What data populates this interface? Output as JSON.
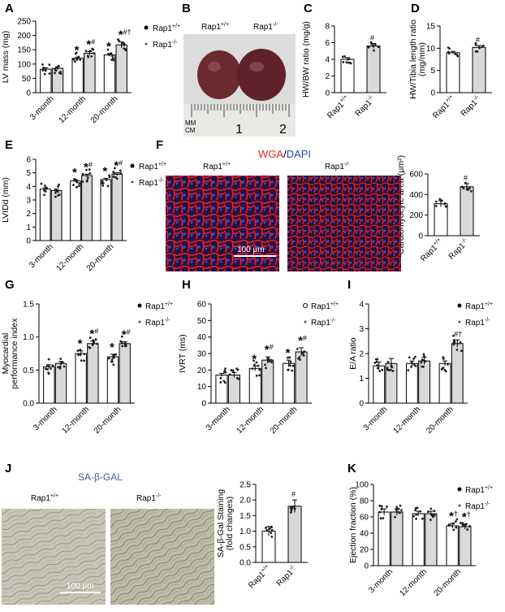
{
  "colors": {
    "wt": "#ffffff",
    "ko": "#d9d9d9",
    "wga": "#e8261c",
    "dapi": "#2e4ea8",
    "sagal": "#3a5fa6"
  },
  "legend": {
    "wt": "Rap1",
    "ko": "Rap1",
    "wt_sup": "+/+",
    "ko_sup": "-/-"
  },
  "labels": {
    "A": "A",
    "B": "B",
    "C": "C",
    "D": "D",
    "E": "E",
    "F": "F",
    "G": "G",
    "H": "H",
    "I": "I",
    "J": "J",
    "K": "K"
  },
  "panel_b": {
    "wt": "Rap1",
    "wt_sup": "+/+",
    "ko": "Rap1",
    "ko_sup": "-/-",
    "ruler_mm": "MM",
    "ruler_cm": "CM",
    "ruler_1": "1",
    "ruler_2": "2"
  },
  "panel_f": {
    "title_red": "WGA",
    "title_sep": "/",
    "title_blue": "DAPI",
    "wt": "Rap1",
    "wt_sup": "+/+",
    "ko": "Rap1",
    "ko_sup": "-/-",
    "scale": "100 μm"
  },
  "panel_j": {
    "title": "SA-β-GAL",
    "wt": "Rap1",
    "wt_sup": "+/+",
    "ko": "Rap1",
    "ko_sup": "-/-",
    "scale": "100 μm"
  },
  "chart_data": [
    {
      "id": "A",
      "type": "bar",
      "categories": [
        "3-month",
        "12-month",
        "20-month"
      ],
      "ylabel": "LV mass (mg)",
      "ylim": [
        0,
        250
      ],
      "ticks": [
        0,
        50,
        100,
        150,
        200,
        250
      ],
      "series": [
        {
          "name": "Rap1+/+",
          "values": [
            82,
            120,
            132
          ],
          "sem": [
            5,
            4,
            5
          ]
        },
        {
          "name": "Rap1-/-",
          "values": [
            85,
            138,
            167
          ],
          "sem": [
            5,
            6,
            10
          ]
        }
      ],
      "marks": [
        [
          "",
          ""
        ],
        [
          "*",
          "*#"
        ],
        [
          "*",
          "*#†"
        ]
      ]
    },
    {
      "id": "C",
      "type": "bar",
      "categories": [
        "Rap1+/+",
        "Rap1-/-"
      ],
      "ylabel": "HW/BW ratio (mg/g)",
      "ylim": [
        0,
        8
      ],
      "ticks": [
        0,
        2,
        4,
        6,
        8
      ],
      "values": [
        4.0,
        5.6
      ],
      "sem": [
        0.2,
        0.3
      ],
      "marks": [
        "",
        "#"
      ]
    },
    {
      "id": "D",
      "type": "bar",
      "categories": [
        "Rap1+/+",
        "Rap1-/-"
      ],
      "ylabel": "HW/Tibia length ratio (mg/mm)",
      "ylim": [
        0,
        15
      ],
      "ticks": [
        0,
        5,
        10,
        15
      ],
      "values": [
        9.0,
        10.2
      ],
      "sem": [
        0.3,
        0.4
      ],
      "marks": [
        "",
        "#"
      ]
    },
    {
      "id": "E",
      "type": "bar",
      "categories": [
        "3-month",
        "12-month",
        "20-month"
      ],
      "ylabel": "LVIDd (mm)",
      "ylim": [
        0,
        6
      ],
      "ticks": [
        0,
        1,
        2,
        3,
        4,
        5,
        6
      ],
      "series": [
        {
          "name": "Rap1+/+",
          "values": [
            3.8,
            4.4,
            4.5
          ],
          "sem": [
            0.1,
            0.1,
            0.1
          ]
        },
        {
          "name": "Rap1-/-",
          "values": [
            3.7,
            4.8,
            4.9
          ],
          "sem": [
            0.1,
            0.1,
            0.1
          ]
        }
      ],
      "marks": [
        [
          "",
          ""
        ],
        [
          "*",
          "*#"
        ],
        [
          "*",
          "*#"
        ]
      ]
    },
    {
      "id": "F",
      "type": "bar",
      "categories": [
        "Rap1+/+",
        "Rap1-/-"
      ],
      "ylabel": "Cardiomyocyte area (μm²)",
      "ylim": [
        0,
        600
      ],
      "ticks": [
        0,
        200,
        400,
        600
      ],
      "values": [
        310,
        475
      ],
      "sem": [
        30,
        30
      ],
      "marks": [
        "",
        "#"
      ]
    },
    {
      "id": "G",
      "type": "bar",
      "categories": [
        "3-month",
        "12-month",
        "20-month"
      ],
      "ylabel": "Myocardial performance index",
      "ylim": [
        0,
        1.5
      ],
      "ticks": [
        0.0,
        0.5,
        1.0,
        1.5
      ],
      "series": [
        {
          "name": "Rap1+/+",
          "values": [
            0.55,
            0.75,
            0.7
          ],
          "sem": [
            0.03,
            0.04,
            0.04
          ]
        },
        {
          "name": "Rap1-/-",
          "values": [
            0.6,
            0.9,
            0.9
          ],
          "sem": [
            0.03,
            0.04,
            0.03
          ]
        }
      ],
      "marks": [
        [
          "",
          ""
        ],
        [
          "*",
          "*#"
        ],
        [
          "*",
          "*#"
        ]
      ]
    },
    {
      "id": "H",
      "type": "bar",
      "categories": [
        "3-month",
        "12-month",
        "20-month"
      ],
      "ylabel": "IVRT (ms)",
      "ylim": [
        0,
        60
      ],
      "ticks": [
        0,
        10,
        20,
        30,
        40,
        50,
        60
      ],
      "series": [
        {
          "name": "Rap1+/+",
          "values": [
            17,
            21,
            24
          ],
          "sem": [
            1,
            1.5,
            2
          ]
        },
        {
          "name": "Rap1-/-",
          "values": [
            17,
            26,
            31
          ],
          "sem": [
            1.5,
            2,
            2.5
          ]
        }
      ],
      "marks": [
        [
          "",
          ""
        ],
        [
          "*",
          "*#"
        ],
        [
          "*",
          "*#"
        ]
      ]
    },
    {
      "id": "I",
      "type": "bar",
      "categories": [
        "3-month",
        "12-month",
        "20-month"
      ],
      "ylabel": "E/A ratio",
      "ylim": [
        0,
        4
      ],
      "ticks": [
        0,
        1,
        2,
        3,
        4
      ],
      "series": [
        {
          "name": "Rap1+/+",
          "values": [
            1.5,
            1.6,
            1.6
          ],
          "sem": [
            0.15,
            0.1,
            0.1
          ]
        },
        {
          "name": "Rap1-/-",
          "values": [
            1.6,
            1.7,
            2.4
          ],
          "sem": [
            0.2,
            0.15,
            0.15
          ]
        }
      ],
      "marks": [
        [
          "",
          ""
        ],
        [
          "",
          ""
        ],
        [
          "",
          "#†"
        ]
      ]
    },
    {
      "id": "J",
      "type": "bar",
      "categories": [
        "Rap1+/+",
        "Rap1-/-"
      ],
      "ylabel": "SA-β-Gal Staining (fold changes)",
      "ylim": [
        0,
        2.5
      ],
      "ticks": [
        0.0,
        0.5,
        1.0,
        1.5,
        2.0,
        2.5
      ],
      "values": [
        1.0,
        1.8
      ],
      "sem": [
        0.15,
        0.2
      ],
      "marks": [
        "",
        "#"
      ]
    },
    {
      "id": "K",
      "type": "bar",
      "categories": [
        "3-month",
        "12-month",
        "20-month"
      ],
      "ylabel": "Ejection fraction (%)",
      "ylim": [
        0,
        100
      ],
      "ticks": [
        0,
        20,
        40,
        60,
        80,
        100
      ],
      "series": [
        {
          "name": "Rap1+/+",
          "values": [
            66,
            64,
            49
          ],
          "sem": [
            4,
            3,
            3
          ]
        },
        {
          "name": "Rap1-/-",
          "values": [
            66,
            64,
            48
          ],
          "sem": [
            4,
            3,
            3
          ]
        }
      ],
      "marks": [
        [
          "",
          ""
        ],
        [
          "",
          ""
        ],
        [
          "*†",
          "*†"
        ]
      ]
    }
  ]
}
